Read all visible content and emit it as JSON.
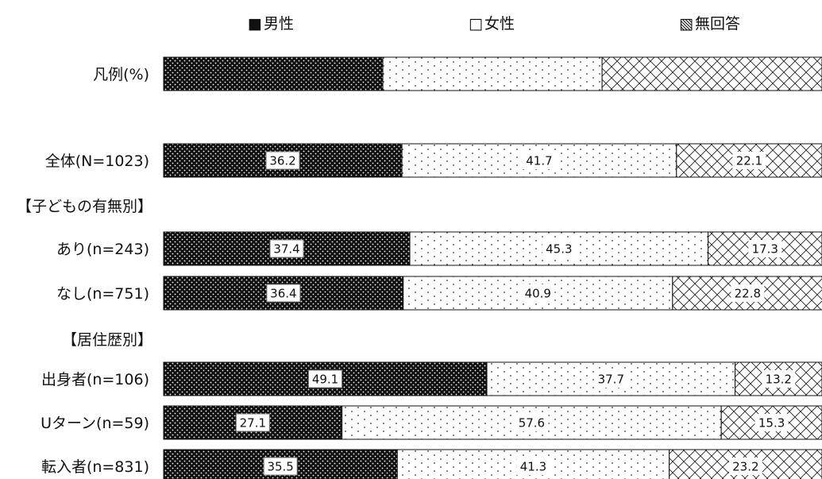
{
  "chart_data": {
    "type": "bar",
    "orientation": "horizontal",
    "stacked": "100%",
    "title": "",
    "xlabel": "",
    "ylabel": "",
    "xlim": [
      0,
      100
    ],
    "grid": false,
    "legend_position": "top",
    "legend": [
      {
        "name": "男性",
        "symbol": "■",
        "pattern": "dots-dark"
      },
      {
        "name": "女性",
        "symbol": "□",
        "pattern": "dots-light"
      },
      {
        "name": "無回答",
        "symbol": "▧",
        "pattern": "crosshatch"
      }
    ],
    "rows": [
      {
        "label": "凡例(%)",
        "kind": "legend-bar",
        "values": [
          33.3,
          33.3,
          33.4
        ],
        "show_values": false
      },
      {
        "label": "全体(N=1023)",
        "kind": "bar",
        "values": [
          36.2,
          41.7,
          22.1
        ],
        "show_values": true
      },
      {
        "label": "【子どもの有無別】",
        "kind": "header"
      },
      {
        "label": "あり(n=243)",
        "kind": "bar",
        "values": [
          37.4,
          45.3,
          17.3
        ],
        "show_values": true
      },
      {
        "label": "なし(n=751)",
        "kind": "bar",
        "values": [
          36.4,
          40.9,
          22.8
        ],
        "show_values": true
      },
      {
        "label": "【居住歴別】",
        "kind": "header"
      },
      {
        "label": "出身者(n=106)",
        "kind": "bar",
        "values": [
          49.1,
          37.7,
          13.2
        ],
        "show_values": true
      },
      {
        "label": "Uターン(n=59)",
        "kind": "bar",
        "values": [
          27.1,
          57.6,
          15.3
        ],
        "show_values": true
      },
      {
        "label": "転入者(n=831)",
        "kind": "bar",
        "values": [
          35.5,
          41.3,
          23.2
        ],
        "show_values": true
      }
    ]
  }
}
